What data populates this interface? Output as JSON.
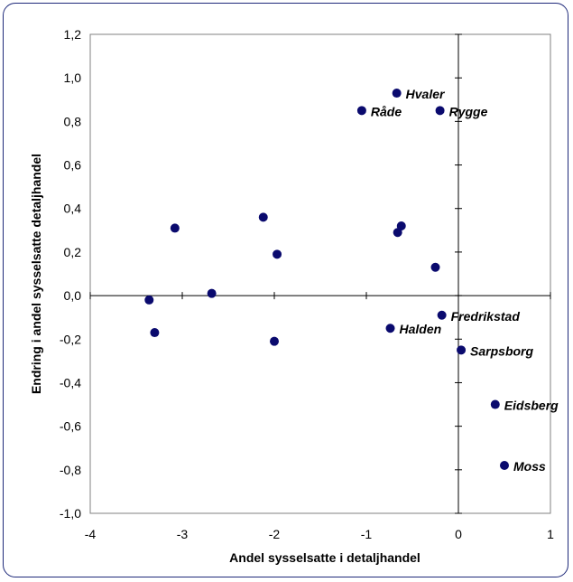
{
  "chart_data": {
    "type": "scatter",
    "xlabel": "Andel sysselsatte i detaljhandel",
    "ylabel": "Endring i andel sysselsatte detaljhandel",
    "xlim": [
      -4,
      1
    ],
    "ylim": [
      -1.0,
      1.2
    ],
    "x_ticks": [
      -4,
      -3,
      -2,
      -1,
      0,
      1
    ],
    "x_tick_labels": [
      "-4",
      "-3",
      "-2",
      "-1",
      "0",
      "1"
    ],
    "y_ticks": [
      -1.0,
      -0.8,
      -0.6,
      -0.4,
      -0.2,
      0.0,
      0.2,
      0.4,
      0.6,
      0.8,
      1.0,
      1.2
    ],
    "y_tick_labels": [
      "-1,0",
      "-0,8",
      "-0,6",
      "-0,4",
      "-0,2",
      "0,0",
      "0,2",
      "0,4",
      "0,6",
      "0,8",
      "1,0",
      "1,2"
    ],
    "grid": false,
    "marker_color": "#0a0a6e",
    "points": [
      {
        "x": -0.67,
        "y": 0.93,
        "label": "Hvaler"
      },
      {
        "x": -1.05,
        "y": 0.85,
        "label": "Råde"
      },
      {
        "x": -0.2,
        "y": 0.85,
        "label": "Rygge"
      },
      {
        "x": -3.08,
        "y": 0.31,
        "label": ""
      },
      {
        "x": -2.12,
        "y": 0.36,
        "label": ""
      },
      {
        "x": -1.97,
        "y": 0.19,
        "label": ""
      },
      {
        "x": -0.62,
        "y": 0.32,
        "label": ""
      },
      {
        "x": -0.66,
        "y": 0.29,
        "label": ""
      },
      {
        "x": -0.25,
        "y": 0.13,
        "label": ""
      },
      {
        "x": -3.36,
        "y": -0.02,
        "label": ""
      },
      {
        "x": -2.68,
        "y": 0.01,
        "label": ""
      },
      {
        "x": -3.3,
        "y": -0.17,
        "label": ""
      },
      {
        "x": -2.0,
        "y": -0.21,
        "label": ""
      },
      {
        "x": -0.74,
        "y": -0.15,
        "label": "Halden"
      },
      {
        "x": -0.18,
        "y": -0.09,
        "label": "Fredrikstad"
      },
      {
        "x": 0.03,
        "y": -0.25,
        "label": "Sarpsborg"
      },
      {
        "x": 0.4,
        "y": -0.5,
        "label": "Eidsberg"
      },
      {
        "x": 0.5,
        "y": -0.78,
        "label": "Moss"
      }
    ]
  }
}
